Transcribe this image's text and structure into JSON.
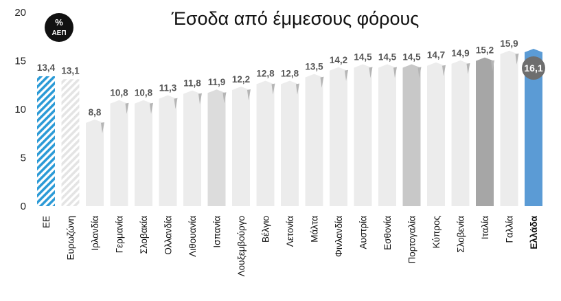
{
  "chart_data": {
    "type": "bar",
    "title": "Έσοδα από έμμεσους φόρους",
    "unit_badge": {
      "symbol": "%",
      "label": "ΑΕΠ"
    },
    "ylim": [
      0,
      20
    ],
    "yticks": [
      0,
      5,
      10,
      15,
      20
    ],
    "grid": false,
    "categories": [
      "ΕΕ",
      "Ευρωζώνη",
      "Ιρλανδία",
      "Γερμανία",
      "Σλοβακία",
      "Ολλανδία",
      "Λιθουανία",
      "Ισπανία",
      "Λουξεμβούργο",
      "Βέλγιο",
      "Λετονία",
      "Μάλτα",
      "Φινλανδία",
      "Αυστρία",
      "Εσθονία",
      "Πορτογαλία",
      "Κύπρος",
      "Σλοβενία",
      "Ιταλία",
      "Γαλλία",
      "Ελλάδα"
    ],
    "values": [
      13.4,
      13.1,
      8.8,
      10.8,
      10.8,
      11.3,
      11.8,
      11.9,
      12.2,
      12.8,
      12.8,
      13.5,
      14.2,
      14.5,
      14.5,
      14.5,
      14.7,
      14.9,
      15.2,
      15.9,
      16.1
    ],
    "value_labels": [
      "13,4",
      "13,1",
      "8,8",
      "10,8",
      "10,8",
      "11,3",
      "11,8",
      "11,9",
      "12,2",
      "12,8",
      "12,8",
      "13,5",
      "14,2",
      "14,5",
      "14,5",
      "14,5",
      "14,7",
      "14,9",
      "15,2",
      "15,9",
      "16,1"
    ],
    "highlight": {
      "category": "Ελλάδα",
      "value_label": "16,1"
    },
    "colors": {
      "eu": "#2b9ad6",
      "eurozone": "#e6e6e6",
      "default": "#ececec",
      "spain": "#dcdcdc",
      "portugal": "#c8c8c8",
      "italy": "#a6a6a6",
      "greece": "#5b9bd5",
      "badge": "#111111",
      "highlight_badge": "#6e6e6e"
    }
  }
}
